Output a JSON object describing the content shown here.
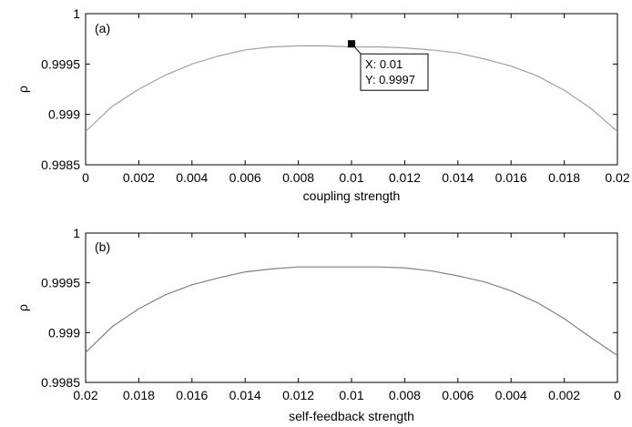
{
  "chart_data": [
    {
      "type": "line",
      "panel_label": "(a)",
      "xlabel": "coupling strength",
      "ylabel": "ρ",
      "xlim": [
        0,
        0.02
      ],
      "ylim": [
        0.9985,
        1
      ],
      "x_reversed": false,
      "xticks": [
        "0",
        "0.002",
        "0.004",
        "0.006",
        "0.008",
        "0.01",
        "0.012",
        "0.014",
        "0.016",
        "0.018",
        "0.02"
      ],
      "xtick_values": [
        0,
        0.002,
        0.004,
        0.006,
        0.008,
        0.01,
        0.012,
        0.014,
        0.016,
        0.018,
        0.02
      ],
      "yticks": [
        "0.9985",
        "0.999",
        "0.9995",
        "1"
      ],
      "ytick_values": [
        0.9985,
        0.999,
        0.9995,
        1
      ],
      "grid": false,
      "line_color": "#a0a0a0",
      "series": [
        {
          "x": [
            0,
            0.001,
            0.002,
            0.003,
            0.004,
            0.005,
            0.006,
            0.007,
            0.008,
            0.009,
            0.01,
            0.011,
            0.012,
            0.013,
            0.014,
            0.015,
            0.016,
            0.017,
            0.018,
            0.019,
            0.02
          ],
          "values": [
            0.99883,
            0.99908,
            0.99925,
            0.99939,
            0.9995,
            0.99958,
            0.99964,
            0.99967,
            0.99968,
            0.99968,
            0.99967,
            0.99967,
            0.99966,
            0.99964,
            0.99961,
            0.99955,
            0.99948,
            0.99938,
            0.99924,
            0.99906,
            0.99883
          ]
        }
      ],
      "datatip": {
        "x": 0.01,
        "y": 0.9997,
        "x_text": "X: 0.01",
        "y_text": "Y: 0.9997"
      }
    },
    {
      "type": "line",
      "panel_label": "(b)",
      "xlabel": "self-feedback strength",
      "ylabel": "ρ",
      "xlim": [
        0.02,
        0
      ],
      "ylim": [
        0.9985,
        1
      ],
      "x_reversed": true,
      "xticks": [
        "0.02",
        "0.018",
        "0.016",
        "0.014",
        "0.012",
        "0.01",
        "0.008",
        "0.006",
        "0.004",
        "0.002",
        "0"
      ],
      "xtick_values": [
        0.02,
        0.018,
        0.016,
        0.014,
        0.012,
        0.01,
        0.008,
        0.006,
        0.004,
        0.002,
        0
      ],
      "yticks": [
        "0.9985",
        "0.999",
        "0.9995",
        "1"
      ],
      "ytick_values": [
        0.9985,
        0.999,
        0.9995,
        1
      ],
      "grid": false,
      "line_color": "#808080",
      "series": [
        {
          "x": [
            0.02,
            0.019,
            0.018,
            0.017,
            0.016,
            0.015,
            0.014,
            0.013,
            0.012,
            0.011,
            0.01,
            0.009,
            0.008,
            0.007,
            0.006,
            0.005,
            0.004,
            0.003,
            0.002,
            0.001,
            0
          ],
          "values": [
            0.9988,
            0.99906,
            0.99924,
            0.99938,
            0.99948,
            0.99955,
            0.99961,
            0.99964,
            0.99966,
            0.99966,
            0.99966,
            0.99966,
            0.99965,
            0.99962,
            0.99957,
            0.99951,
            0.99942,
            0.9993,
            0.99914,
            0.99895,
            0.99877
          ]
        }
      ]
    }
  ]
}
